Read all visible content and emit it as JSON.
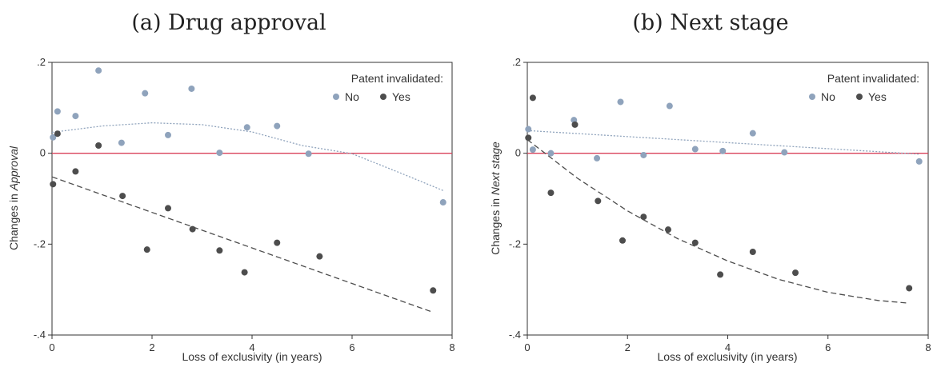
{
  "chart_data": [
    {
      "type": "scatter",
      "title": "(a) Drug approval",
      "xlabel": "Loss of exclusivity (in years)",
      "ylabel_prefix": "Changes in ",
      "ylabel_var": "Approval",
      "xlim": [
        0,
        8
      ],
      "ylim": [
        -0.4,
        0.2
      ],
      "xticks": [
        0,
        2,
        4,
        6,
        8
      ],
      "xtick_labels": [
        "0",
        "2",
        "4",
        "6",
        "8"
      ],
      "yticks": [
        -0.4,
        -0.2,
        0,
        0.2
      ],
      "ytick_labels": [
        "-.4",
        "-.2",
        "0",
        ".2"
      ],
      "reference_line_y": 0,
      "reference_color": "#d9425a",
      "legend": {
        "title": "Patent invalidated:",
        "position": "top-right",
        "entries": [
          "No",
          "Yes"
        ]
      },
      "series": [
        {
          "name": "No",
          "color": "#8fa3bc",
          "points": [
            [
              0.02,
              0.035
            ],
            [
              0.11,
              0.092
            ],
            [
              0.47,
              0.082
            ],
            [
              0.93,
              0.182
            ],
            [
              1.39,
              0.023
            ],
            [
              1.86,
              0.132
            ],
            [
              2.32,
              0.04
            ],
            [
              2.79,
              0.142
            ],
            [
              3.35,
              0.001
            ],
            [
              3.9,
              0.057
            ],
            [
              4.5,
              0.06
            ],
            [
              5.13,
              -0.001
            ],
            [
              7.82,
              -0.108
            ]
          ],
          "fit": [
            [
              0,
              0.046
            ],
            [
              1,
              0.06
            ],
            [
              2,
              0.067
            ],
            [
              3,
              0.063
            ],
            [
              4,
              0.047
            ],
            [
              5,
              0.017
            ],
            [
              6,
              -0.001
            ],
            [
              7,
              -0.045
            ],
            [
              7.82,
              -0.082
            ]
          ]
        },
        {
          "name": "Yes",
          "color": "#4d4d4d",
          "points": [
            [
              0.02,
              -0.068
            ],
            [
              0.11,
              0.043
            ],
            [
              0.47,
              -0.04
            ],
            [
              0.93,
              0.017
            ],
            [
              1.41,
              -0.094
            ],
            [
              1.9,
              -0.212
            ],
            [
              2.32,
              -0.121
            ],
            [
              2.81,
              -0.167
            ],
            [
              3.35,
              -0.214
            ],
            [
              3.85,
              -0.262
            ],
            [
              4.5,
              -0.197
            ],
            [
              5.35,
              -0.227
            ],
            [
              7.62,
              -0.302
            ]
          ],
          "fit": [
            [
              0,
              -0.052
            ],
            [
              7.62,
              -0.35
            ]
          ]
        }
      ]
    },
    {
      "type": "scatter",
      "title": "(b) Next stage",
      "xlabel": "Loss of exclusivity (in years)",
      "ylabel_prefix": "Changes in ",
      "ylabel_var": "Next stage",
      "xlim": [
        0,
        8
      ],
      "ylim": [
        -0.4,
        0.2
      ],
      "xticks": [
        0,
        2,
        4,
        6,
        8
      ],
      "xtick_labels": [
        "0",
        "2",
        "4",
        "6",
        "8"
      ],
      "yticks": [
        -0.4,
        -0.2,
        0,
        0.2
      ],
      "ytick_labels": [
        "-.4",
        "-.2",
        "0",
        ".2"
      ],
      "reference_line_y": 0,
      "reference_color": "#d9425a",
      "legend": {
        "title": "Patent invalidated:",
        "position": "top-right",
        "entries": [
          "No",
          "Yes"
        ]
      },
      "series": [
        {
          "name": "No",
          "color": "#8fa3bc",
          "points": [
            [
              0.02,
              0.053
            ],
            [
              0.11,
              0.008
            ],
            [
              0.47,
              0.0
            ],
            [
              0.93,
              0.073
            ],
            [
              1.39,
              -0.011
            ],
            [
              1.86,
              0.113
            ],
            [
              2.32,
              -0.004
            ],
            [
              2.84,
              0.104
            ],
            [
              3.35,
              0.009
            ],
            [
              3.9,
              0.005
            ],
            [
              4.5,
              0.044
            ],
            [
              5.13,
              0.002
            ],
            [
              7.82,
              -0.018
            ]
          ],
          "fit": [
            [
              0,
              0.05
            ],
            [
              7.82,
              -0.002
            ]
          ]
        },
        {
          "name": "Yes",
          "color": "#4d4d4d",
          "points": [
            [
              0.02,
              0.034
            ],
            [
              0.11,
              0.122
            ],
            [
              0.47,
              -0.087
            ],
            [
              0.95,
              0.063
            ],
            [
              1.41,
              -0.105
            ],
            [
              1.9,
              -0.192
            ],
            [
              2.32,
              -0.14
            ],
            [
              2.81,
              -0.168
            ],
            [
              3.35,
              -0.197
            ],
            [
              3.85,
              -0.267
            ],
            [
              4.5,
              -0.217
            ],
            [
              5.35,
              -0.263
            ],
            [
              7.62,
              -0.297
            ]
          ],
          "fit": [
            [
              0,
              0.03
            ],
            [
              1,
              -0.055
            ],
            [
              2,
              -0.127
            ],
            [
              3,
              -0.188
            ],
            [
              4,
              -0.237
            ],
            [
              5,
              -0.277
            ],
            [
              6,
              -0.306
            ],
            [
              7,
              -0.324
            ],
            [
              7.62,
              -0.33
            ]
          ]
        }
      ]
    }
  ]
}
